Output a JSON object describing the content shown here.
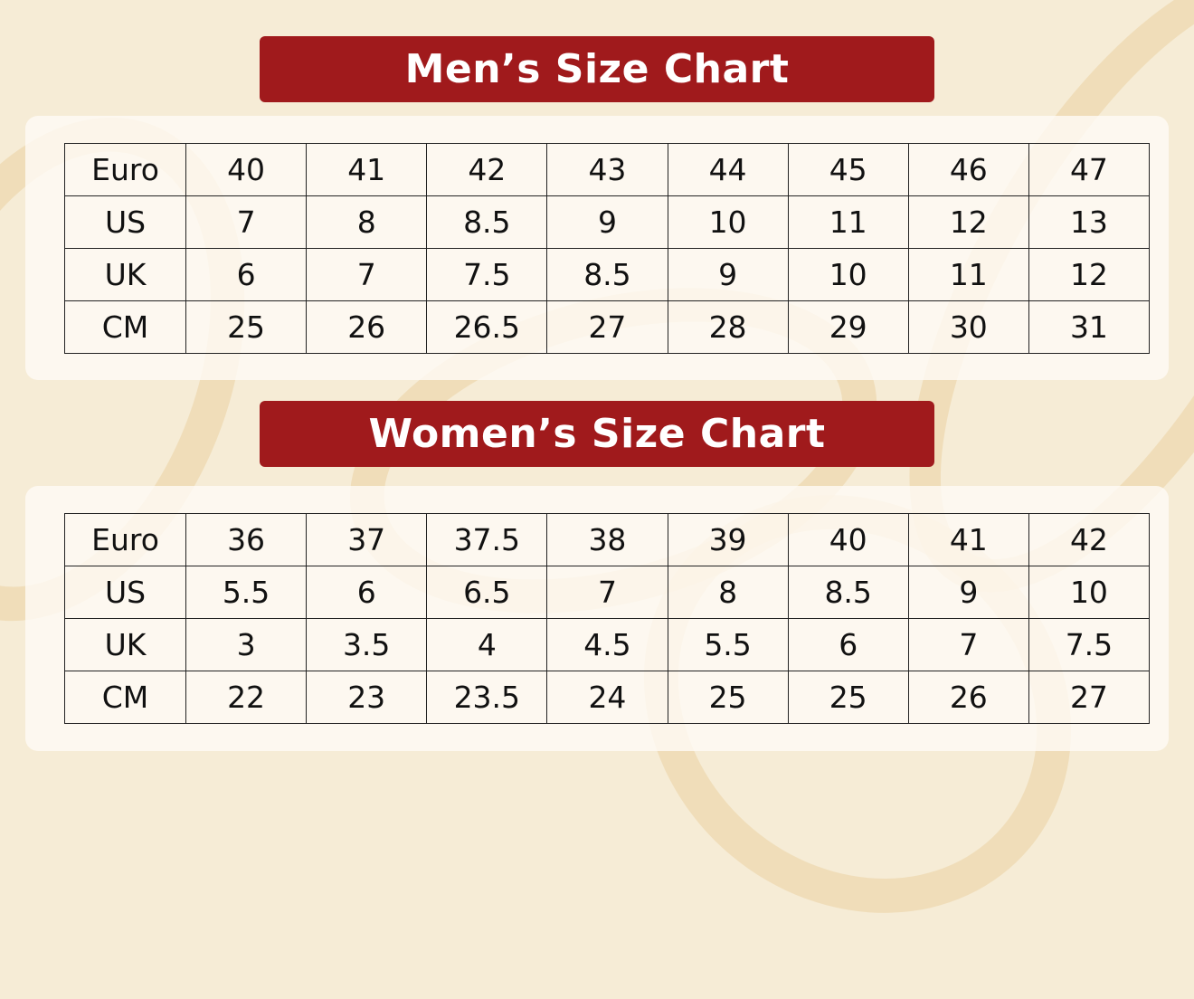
{
  "men": {
    "title": "Men’s Size Chart",
    "rows": [
      {
        "label": "Euro",
        "values": [
          "40",
          "41",
          "42",
          "43",
          "44",
          "45",
          "46",
          "47"
        ]
      },
      {
        "label": "US",
        "values": [
          "7",
          "8",
          "8.5",
          "9",
          "10",
          "11",
          "12",
          "13"
        ]
      },
      {
        "label": "UK",
        "values": [
          "6",
          "7",
          "7.5",
          "8.5",
          "9",
          "10",
          "11",
          "12"
        ]
      },
      {
        "label": "CM",
        "values": [
          "25",
          "26",
          "26.5",
          "27",
          "28",
          "29",
          "30",
          "31"
        ]
      }
    ]
  },
  "women": {
    "title": "Women’s Size Chart",
    "rows": [
      {
        "label": "Euro",
        "values": [
          "36",
          "37",
          "37.5",
          "38",
          "39",
          "40",
          "41",
          "42"
        ]
      },
      {
        "label": "US",
        "values": [
          "5.5",
          "6",
          "6.5",
          "7",
          "8",
          "8.5",
          "9",
          "10"
        ]
      },
      {
        "label": "UK",
        "values": [
          "3",
          "3.5",
          "4",
          "4.5",
          "5.5",
          "6",
          "7",
          "7.5"
        ]
      },
      {
        "label": "CM",
        "values": [
          "22",
          "23",
          "23.5",
          "24",
          "25",
          "25",
          "26",
          "27"
        ]
      }
    ]
  },
  "colors": {
    "banner": "#a01a1c",
    "background": "#f6ecd6"
  }
}
